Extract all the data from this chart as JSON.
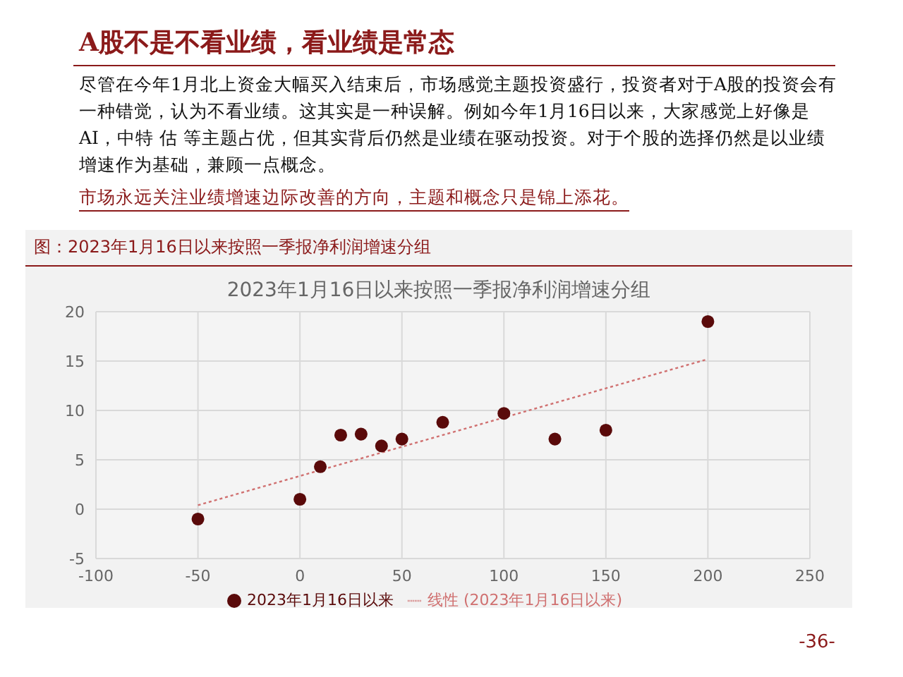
{
  "chart_data": {
    "type": "scatter",
    "title": "A股不是不看业绩，看业绩是常态",
    "subtitle": "2023年1月16日以来按照一季报净利润增速分组",
    "annotations": [
      "尽管在今年1月北上资金大幅买入结束后，市场感觉主题投资盛行，投资者对于A股的投资会有一种错觉，认为不看业绩。这其实是一种误解。例如今年1月16日以来，大家感觉上好像是AI，中特 估 等主题占优，但其实背后仍然是业绩在驱动投资。对于个股的选择仍然是以业绩增速作为基础，兼顾一点概念。",
      "市场永远关注业绩增速边际改善的方向，主题和概念只是锦上添花。",
      "图：2023年1月16日以来按照一季报净利润增速分组",
      "-36-"
    ],
    "series": [
      {
        "name": "2023年1月16日以来",
        "color": "#5a0a0a",
        "x": [
          -50,
          0,
          10,
          20,
          30,
          40,
          50,
          70,
          100,
          125,
          150,
          200
        ],
        "values": [
          -1,
          1,
          4.3,
          7.5,
          7.6,
          6.4,
          7.1,
          8.8,
          9.7,
          7.1,
          8,
          19
        ]
      },
      {
        "name": "线性 (2023年1月16日以来)",
        "type": "line",
        "color": "#d07070",
        "line_style": "dotted",
        "marker": "none",
        "x": [
          -50,
          200
        ],
        "values": [
          0.4,
          15.2
        ]
      }
    ],
    "xlim": [
      -100,
      250
    ],
    "xticks": [
      -100,
      -50,
      0,
      50,
      100,
      150,
      200,
      250
    ],
    "ylim": [
      -5,
      20
    ],
    "yticks": [
      -5,
      0,
      5,
      10,
      15,
      20
    ],
    "grid": true,
    "legend": "bottom",
    "marker": "circle"
  }
}
